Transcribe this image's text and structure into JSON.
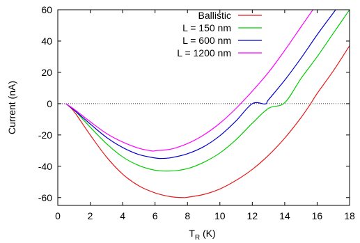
{
  "chart_data": {
    "type": "line",
    "title": "",
    "xlabel": "T",
    "xlabel_sub": "R",
    "xlabel_unit": " (K)",
    "ylabel": "Current (nA)",
    "xlim": [
      0,
      18
    ],
    "ylim": [
      -65,
      60
    ],
    "xticks": [
      0,
      2,
      4,
      6,
      8,
      10,
      12,
      14,
      16,
      18
    ],
    "yticks": [
      -60,
      -40,
      -20,
      0,
      20,
      40,
      60
    ],
    "grid": false,
    "zero_line": true,
    "legend_position": "top-right",
    "series": [
      {
        "name": "Ballistic",
        "color": "#e41a1c",
        "x": [
          0.5,
          1,
          2,
          3,
          4,
          5,
          6,
          7,
          7.7,
          8,
          9,
          10,
          11,
          12,
          13,
          14,
          15,
          15.6,
          16,
          17,
          18
        ],
        "y": [
          0,
          -5,
          -20,
          -34,
          -45,
          -52.5,
          -57,
          -59.5,
          -60,
          -59.8,
          -58,
          -54.5,
          -49,
          -42,
          -33,
          -22,
          -9,
          0,
          6.5,
          21,
          37
        ]
      },
      {
        "name": "L = 150 nm",
        "color": "#00cc00",
        "x": [
          0.5,
          1,
          2,
          3,
          4,
          5,
          6,
          7,
          8,
          9,
          10,
          11,
          12,
          13,
          14,
          15,
          16,
          17,
          18
        ],
        "y": [
          0,
          -4,
          -15,
          -25.5,
          -34,
          -39.5,
          -42.5,
          -43,
          -41.5,
          -37.5,
          -31.5,
          -23,
          -12.5,
          -3,
          0.6,
          16,
          30,
          45,
          60
        ]
      },
      {
        "name": "L = 600 nm",
        "color": "#0000cc",
        "x": [
          0.5,
          1,
          2,
          3,
          4,
          5,
          6,
          6.4,
          7,
          8,
          9,
          10,
          11,
          12,
          12.8,
          13,
          14,
          15,
          16,
          17,
          17.5
        ],
        "y": [
          0,
          -4,
          -13,
          -21.5,
          -28,
          -32.5,
          -34.7,
          -35,
          -34.5,
          -32,
          -27.5,
          -20.5,
          -11,
          0,
          -0.2,
          2.5,
          15,
          29,
          44,
          58,
          65
        ]
      },
      {
        "name": "L = 1200 nm",
        "color": "#ff00ff",
        "x": [
          0.5,
          1,
          2,
          3,
          4,
          5,
          5.8,
          6,
          7,
          8,
          9,
          10,
          11,
          12,
          13,
          14,
          15,
          16,
          17
        ],
        "y": [
          0,
          -3.5,
          -11.5,
          -19,
          -24.5,
          -28.5,
          -30.2,
          -30.1,
          -29,
          -25.5,
          -20,
          -12.5,
          -3,
          8,
          20,
          34,
          49,
          64,
          80
        ]
      }
    ]
  }
}
